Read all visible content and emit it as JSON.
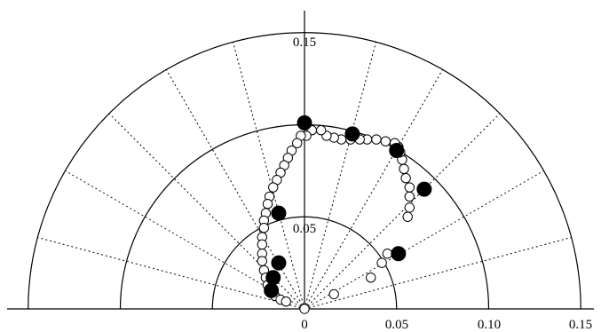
{
  "chart_data": {
    "type": "scatter",
    "title": "",
    "xlabel": "",
    "ylabel": "",
    "coordinate_system": "polar half-plane",
    "radial_range": [
      0,
      0.15
    ],
    "radial_circles": [
      0.05,
      0.1,
      0.15
    ],
    "radial_spokes_deg": [
      15,
      30,
      45,
      60,
      75,
      105,
      120,
      135,
      150,
      165
    ],
    "x_tick_labels": [
      "0",
      "0.05",
      "0.10",
      "0.15"
    ],
    "x_tick_values": [
      0,
      0.05,
      0.1,
      0.15
    ],
    "y_tick_labels": [
      "0.05",
      "0.15"
    ],
    "y_tick_values": [
      0.05,
      0.15
    ],
    "grid": true,
    "legend": "none",
    "series": [
      {
        "marker": "open-circle",
        "points": [
          [
            0.0,
            0.0
          ],
          [
            0.016,
            0.008
          ],
          [
            0.036,
            0.017
          ],
          [
            0.042,
            0.025
          ],
          [
            0.045,
            0.03
          ],
          [
            0.056,
            0.05
          ],
          [
            0.057,
            0.055
          ],
          [
            0.057,
            0.061
          ],
          [
            0.057,
            0.066
          ],
          [
            0.055,
            0.071
          ],
          [
            0.054,
            0.076
          ],
          [
            0.053,
            0.081
          ],
          [
            0.052,
            0.085
          ],
          [
            0.051,
            0.088
          ],
          [
            0.049,
            0.09
          ],
          [
            0.044,
            0.091
          ],
          [
            0.039,
            0.092
          ],
          [
            0.034,
            0.092
          ],
          [
            0.03,
            0.092
          ],
          [
            0.025,
            0.092
          ],
          [
            0.02,
            0.092
          ],
          [
            0.016,
            0.093
          ],
          [
            0.012,
            0.094
          ],
          [
            0.009,
            0.097
          ],
          [
            0.004,
            0.097
          ],
          [
            0.001,
            0.094
          ],
          [
            -0.002,
            0.094
          ],
          [
            -0.004,
            0.09
          ],
          [
            -0.007,
            0.086
          ],
          [
            -0.009,
            0.082
          ],
          [
            -0.011,
            0.078
          ],
          [
            -0.013,
            0.074
          ],
          [
            -0.015,
            0.07
          ],
          [
            -0.017,
            0.066
          ],
          [
            -0.019,
            0.061
          ],
          [
            -0.02,
            0.057
          ],
          [
            -0.021,
            0.052
          ],
          [
            -0.022,
            0.048
          ],
          [
            -0.022,
            0.044
          ],
          [
            -0.023,
            0.039
          ],
          [
            -0.023,
            0.035
          ],
          [
            -0.023,
            0.03
          ],
          [
            -0.023,
            0.026
          ],
          [
            -0.022,
            0.021
          ],
          [
            -0.021,
            0.017
          ],
          [
            -0.02,
            0.013
          ],
          [
            -0.018,
            0.01
          ],
          [
            -0.016,
            0.007
          ],
          [
            -0.013,
            0.005
          ],
          [
            -0.01,
            0.004
          ]
        ]
      },
      {
        "marker": "filled-circle",
        "points": [
          [
            0.0,
            0.101
          ],
          [
            0.026,
            0.095
          ],
          [
            0.05,
            0.086
          ],
          [
            0.065,
            0.065
          ],
          [
            0.051,
            0.03
          ],
          [
            -0.014,
            0.052
          ],
          [
            -0.014,
            0.025
          ],
          [
            -0.017,
            0.017
          ],
          [
            -0.018,
            0.01
          ]
        ]
      }
    ]
  }
}
